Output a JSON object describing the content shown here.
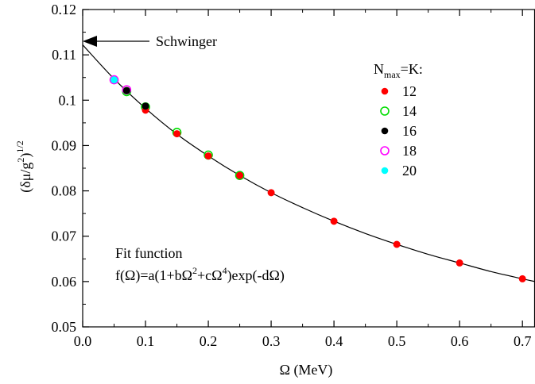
{
  "chart_data": {
    "type": "scatter",
    "xlabel": "Ω (MeV)",
    "ylabel_base": "(δμ/g",
    "ylabel_sup": "2",
    "ylabel_close": ")",
    "ylabel_exp": "1/2",
    "xlim": [
      0.0,
      0.72
    ],
    "ylim": [
      0.05,
      0.12
    ],
    "x_ticks": [
      0.0,
      0.1,
      0.2,
      0.3,
      0.4,
      0.5,
      0.6,
      0.7
    ],
    "x_tick_labels": [
      "0.0",
      "0.1",
      "0.2",
      "0.3",
      "0.4",
      "0.5",
      "0.6",
      "0.7"
    ],
    "y_ticks": [
      0.05,
      0.06,
      0.07,
      0.08,
      0.09,
      0.1,
      0.11,
      0.12
    ],
    "y_tick_labels": [
      "0.05",
      "0.06",
      "0.07",
      "0.08",
      "0.09",
      "0.1",
      "0.11",
      "0.12"
    ],
    "grid": false,
    "legend": {
      "title_main": "N",
      "title_sub": "max",
      "title_rest": "=K:",
      "placement": "top-right"
    },
    "series": [
      {
        "name": "12",
        "color": "#ff0000",
        "marker": "filled-circle",
        "x": [
          0.1,
          0.15,
          0.2,
          0.25,
          0.3,
          0.4,
          0.5,
          0.6,
          0.7
        ],
        "y": [
          0.0978,
          0.0926,
          0.0877,
          0.0834,
          0.0796,
          0.0733,
          0.0682,
          0.0641,
          0.0606
        ]
      },
      {
        "name": "14",
        "color": "#00dd00",
        "marker": "open-circle",
        "x": [
          0.07,
          0.1,
          0.15,
          0.2,
          0.25
        ],
        "y": [
          0.1019,
          0.0985,
          0.0929,
          0.0879,
          0.0834
        ]
      },
      {
        "name": "16",
        "color": "#000000",
        "marker": "filled-circle",
        "x": [
          0.07,
          0.1
        ],
        "y": [
          0.1021,
          0.0987
        ]
      },
      {
        "name": "18",
        "color": "#ff00ff",
        "marker": "open-circle",
        "x": [
          0.05,
          0.07
        ],
        "y": [
          0.1045,
          0.1023
        ]
      },
      {
        "name": "20",
        "color": "#00ffff",
        "marker": "filled-circle",
        "x": [
          0.05
        ],
        "y": [
          0.1045
        ]
      }
    ],
    "fit_curve": {
      "x": [
        0.0,
        0.05,
        0.1,
        0.15,
        0.2,
        0.25,
        0.3,
        0.35,
        0.4,
        0.45,
        0.5,
        0.55,
        0.6,
        0.65,
        0.7,
        0.72
      ],
      "y": [
        0.1122,
        0.1047,
        0.0982,
        0.0925,
        0.0877,
        0.0834,
        0.0796,
        0.0763,
        0.0733,
        0.0706,
        0.0682,
        0.066,
        0.0641,
        0.0622,
        0.0606,
        0.06
      ]
    },
    "annotations": {
      "schwinger_label": "Schwinger",
      "schwinger_y": 0.1122,
      "fit_line1": "Fit function",
      "fit_line2_parts": [
        "f(Ω)=a(1+bΩ",
        "2",
        "+cΩ",
        "4",
        ")exp(-dΩ)"
      ]
    }
  }
}
